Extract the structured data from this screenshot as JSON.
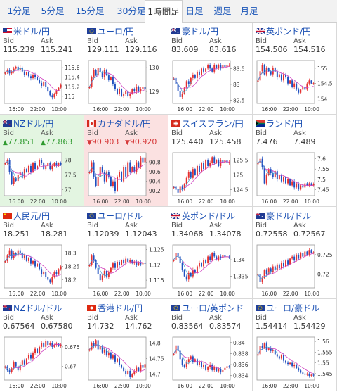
{
  "tabs": [
    {
      "label": "1分足",
      "active": false
    },
    {
      "label": "5分足",
      "active": false
    },
    {
      "label": "15分足",
      "active": false
    },
    {
      "label": "30分足",
      "active": false
    },
    {
      "label": "1時間足",
      "active": true
    },
    {
      "label": "日足",
      "active": false
    },
    {
      "label": "週足",
      "active": false
    },
    {
      "label": "月足",
      "active": false
    }
  ],
  "labels": {
    "bid": "Bid",
    "ask": "Ask"
  },
  "colors": {
    "up_candle": "#e53030",
    "down_candle": "#2050c0",
    "ma_line": "#d040c0",
    "ma_line2": "#40a0d0",
    "title": "#1a4fb3"
  },
  "pairs": [
    {
      "name": "米ドル/円",
      "flag": "us-flag-icon",
      "bid": "115.239",
      "ask": "115.241",
      "trend": "none",
      "ticks": [
        "115.6",
        "115.4",
        "115.2",
        "115"
      ],
      "x_ticks": [
        "16:00",
        "22:00",
        "10:00"
      ],
      "chart_data": {
        "type": "candlestick",
        "ylim": [
          114.85,
          115.75
        ],
        "close": [
          115.5,
          115.55,
          115.48,
          115.52,
          115.58,
          115.62,
          115.55,
          115.6,
          115.52,
          115.45,
          115.5,
          115.42,
          115.38,
          115.45,
          115.4,
          115.35,
          115.28,
          115.22,
          115.3,
          115.2,
          115.1,
          115.02,
          114.98,
          115.05,
          115.12,
          115.18,
          115.24
        ]
      }
    },
    {
      "name": "ユーロ/円",
      "flag": "eu-flag-icon",
      "bid": "129.111",
      "ask": "129.116",
      "trend": "none",
      "ticks": [
        "130",
        "129"
      ],
      "x_ticks": [
        "16:00",
        "22:00",
        "10:00"
      ],
      "chart_data": {
        "type": "candlestick",
        "ylim": [
          128.5,
          130.3
        ],
        "close": [
          129.2,
          129.6,
          129.9,
          129.7,
          130.0,
          129.8,
          129.6,
          129.9,
          129.7,
          129.5,
          129.6,
          129.3,
          129.1,
          128.9,
          129.1,
          128.8,
          128.9,
          129.0,
          128.8,
          128.9,
          129.1,
          129.0,
          129.2,
          129.0,
          129.1,
          129.2,
          129.11
        ]
      }
    },
    {
      "name": "豪ドル/円",
      "flag": "au-flag-icon",
      "bid": "83.609",
      "ask": "83.616",
      "trend": "none",
      "ticks": [
        "83.5",
        "83",
        "82.5"
      ],
      "x_ticks": [
        "16:00",
        "22:00",
        "10:00"
      ],
      "chart_data": {
        "type": "candlestick",
        "ylim": [
          82.4,
          83.75
        ],
        "close": [
          83.2,
          83.0,
          82.8,
          82.6,
          82.7,
          82.9,
          83.1,
          83.0,
          83.2,
          83.3,
          83.2,
          83.4,
          83.3,
          83.5,
          83.4,
          83.5,
          83.6,
          83.5,
          83.4,
          83.6,
          83.5,
          83.6,
          83.5,
          83.6,
          83.55,
          83.6,
          83.61
        ]
      }
    },
    {
      "name": "英ポンド/円",
      "flag": "gb-flag-icon",
      "bid": "154.506",
      "ask": "154.516",
      "trend": "none",
      "ticks": [
        "155",
        "154.5",
        "154"
      ],
      "x_ticks": [
        "16:00",
        "22:00",
        "10:00"
      ],
      "chart_data": {
        "type": "candlestick",
        "ylim": [
          153.85,
          155.25
        ],
        "close": [
          154.6,
          154.9,
          155.1,
          154.8,
          155.0,
          154.9,
          154.8,
          155.0,
          154.9,
          154.7,
          154.8,
          154.6,
          154.8,
          154.7,
          154.5,
          154.6,
          154.4,
          154.5,
          154.3,
          154.2,
          154.3,
          154.4,
          154.3,
          154.5,
          154.6,
          154.5,
          154.51
        ]
      }
    },
    {
      "name": "NZドル/円",
      "flag": "nz-flag-icon",
      "bid": "77.851",
      "ask": "77.863",
      "trend": "up",
      "arrow": "▲",
      "ticks": [
        "78",
        "77.5",
        "77"
      ],
      "x_ticks": [
        "16:00",
        "22:00",
        "10:00"
      ],
      "chart_data": {
        "type": "candlestick",
        "ylim": [
          76.8,
          78.25
        ],
        "close": [
          77.9,
          78.0,
          77.6,
          77.2,
          77.4,
          77.3,
          77.5,
          77.6,
          77.4,
          77.7,
          77.6,
          77.8,
          77.6,
          77.9,
          77.7,
          77.8,
          78.0,
          77.9,
          77.7,
          77.8,
          77.9,
          77.7,
          77.8,
          77.9,
          77.8,
          77.9,
          77.85
        ]
      }
    },
    {
      "name": "カナダドル/円",
      "flag": "ca-flag-icon",
      "bid": "90.903",
      "ask": "90.920",
      "trend": "down",
      "arrow": "▼",
      "ticks": [
        "90.8",
        "90.6",
        "90.4",
        "90.2"
      ],
      "x_ticks": [
        "16:00",
        "22:00",
        "10:00"
      ],
      "chart_data": {
        "type": "candlestick",
        "ylim": [
          90.1,
          91.0
        ],
        "close": [
          90.6,
          90.8,
          90.5,
          90.3,
          90.5,
          90.7,
          90.6,
          90.4,
          90.6,
          90.5,
          90.3,
          90.4,
          90.2,
          90.5,
          90.6,
          90.4,
          90.7,
          90.5,
          90.8,
          90.6,
          90.7,
          90.6,
          90.8,
          90.7,
          90.9,
          90.8,
          90.9
        ]
      }
    },
    {
      "name": "スイスフラン/円",
      "flag": "ch-flag-icon",
      "bid": "125.440",
      "ask": "125.458",
      "trend": "none",
      "ticks": [
        "125.5",
        "125",
        "124.5"
      ],
      "x_ticks": [
        "16:00",
        "22:00",
        "10:00"
      ],
      "chart_data": {
        "type": "candlestick",
        "ylim": [
          124.3,
          125.75
        ],
        "close": [
          124.6,
          124.5,
          124.4,
          124.6,
          124.5,
          124.7,
          124.9,
          125.1,
          124.9,
          125.2,
          125.0,
          125.3,
          125.1,
          125.4,
          125.2,
          125.5,
          125.3,
          125.4,
          125.6,
          125.4,
          125.5,
          125.3,
          125.5,
          125.4,
          125.5,
          125.4,
          125.44
        ]
      }
    },
    {
      "name": "ランド/円",
      "flag": "za-flag-icon",
      "bid": "7.476",
      "ask": "7.489",
      "trend": "none",
      "ticks": [
        "7.6",
        "7.55",
        "7.5",
        "7.45"
      ],
      "x_ticks": [
        "16:00",
        "22:00",
        "10:00"
      ],
      "chart_data": {
        "type": "candlestick",
        "ylim": [
          7.42,
          7.63
        ],
        "close": [
          7.58,
          7.6,
          7.56,
          7.48,
          7.52,
          7.55,
          7.53,
          7.51,
          7.54,
          7.5,
          7.52,
          7.49,
          7.51,
          7.48,
          7.5,
          7.47,
          7.49,
          7.46,
          7.48,
          7.45,
          7.47,
          7.46,
          7.48,
          7.47,
          7.48,
          7.47,
          7.476
        ]
      }
    },
    {
      "name": "人民元/円",
      "flag": "cn-flag-icon",
      "bid": "18.251",
      "ask": "18.281",
      "trend": "none",
      "ticks": [
        "18.3",
        "18.25",
        "18.2"
      ],
      "x_ticks": [
        "16:00",
        "22:00",
        "10:00"
      ],
      "chart_data": {
        "type": "candlestick",
        "ylim": [
          18.17,
          18.33
        ],
        "close": [
          18.27,
          18.29,
          18.31,
          18.28,
          18.3,
          18.29,
          18.31,
          18.3,
          18.28,
          18.29,
          18.27,
          18.28,
          18.26,
          18.27,
          18.25,
          18.26,
          18.24,
          18.22,
          18.23,
          18.21,
          18.2,
          18.19,
          18.21,
          18.23,
          18.22,
          18.24,
          18.25
        ]
      }
    },
    {
      "name": "ユーロ/ドル",
      "flag": "eu-flag-icon",
      "bid": "1.12039",
      "ask": "1.12043",
      "trend": "none",
      "ticks": [
        "1.125",
        "1.12",
        "1.115"
      ],
      "x_ticks": [
        "16:00",
        "22:00",
        "10:00"
      ],
      "chart_data": {
        "type": "candlestick",
        "ylim": [
          1.1125,
          1.1265
        ],
        "close": [
          1.12,
          1.123,
          1.1215,
          1.119,
          1.117,
          1.115,
          1.1165,
          1.118,
          1.116,
          1.1175,
          1.119,
          1.1205,
          1.119,
          1.121,
          1.12,
          1.1215,
          1.1205,
          1.122,
          1.121,
          1.1215,
          1.1205,
          1.121,
          1.12,
          1.1208,
          1.1202,
          1.1206,
          1.1204
        ]
      }
    },
    {
      "name": "英ポンド/ドル",
      "flag": "gb-flag-icon",
      "bid": "1.34068",
      "ask": "1.34078",
      "trend": "none",
      "ticks": [
        "1.34",
        "1.335"
      ],
      "x_ticks": [
        "16:00",
        "22:00",
        "10:00"
      ],
      "chart_data": {
        "type": "candlestick",
        "ylim": [
          1.3315,
          1.3445
        ],
        "close": [
          1.34,
          1.342,
          1.341,
          1.339,
          1.337,
          1.335,
          1.334,
          1.336,
          1.335,
          1.337,
          1.336,
          1.338,
          1.339,
          1.338,
          1.34,
          1.339,
          1.341,
          1.34,
          1.342,
          1.341,
          1.34,
          1.341,
          1.3405,
          1.3415,
          1.3408,
          1.341,
          1.3407
        ]
      }
    },
    {
      "name": "豪ドル/ドル",
      "flag": "au-flag-icon",
      "bid": "0.72558",
      "ask": "0.72567",
      "trend": "none",
      "ticks": [
        "0.725",
        "0.72"
      ],
      "x_ticks": [
        "16:00",
        "22:00",
        "10:00"
      ],
      "chart_data": {
        "type": "candlestick",
        "ylim": [
          0.7165,
          0.7275
        ],
        "close": [
          0.72,
          0.718,
          0.719,
          0.721,
          0.72,
          0.7215,
          0.7205,
          0.722,
          0.721,
          0.7225,
          0.7215,
          0.723,
          0.722,
          0.7235,
          0.7225,
          0.724,
          0.7245,
          0.7235,
          0.725,
          0.724,
          0.7255,
          0.7245,
          0.7258,
          0.725,
          0.7262,
          0.7255,
          0.7256
        ]
      }
    },
    {
      "name": "NZドル/ドル",
      "flag": "nz-flag-icon",
      "bid": "0.67564",
      "ask": "0.67580",
      "trend": "none",
      "ticks": [
        "0.675",
        "0.67"
      ],
      "x_ticks": [
        "16:00",
        "22:00",
        "10:00"
      ],
      "chart_data": {
        "type": "candlestick",
        "ylim": [
          0.6665,
          0.6775
        ],
        "close": [
          0.67,
          0.669,
          0.6685,
          0.6695,
          0.671,
          0.67,
          0.669,
          0.6705,
          0.6715,
          0.6705,
          0.672,
          0.673,
          0.672,
          0.6735,
          0.6745,
          0.6735,
          0.675,
          0.676,
          0.675,
          0.6765,
          0.6755,
          0.676,
          0.675,
          0.6755,
          0.6758,
          0.6752,
          0.6756
        ]
      }
    },
    {
      "name": "香港ドル/円",
      "flag": "hk-flag-icon",
      "bid": "14.732",
      "ask": "14.762",
      "trend": "none",
      "ticks": [
        "14.8",
        "14.75",
        "14.7"
      ],
      "x_ticks": [
        "16:00",
        "22:00",
        "10:00"
      ],
      "chart_data": {
        "type": "candlestick",
        "ylim": [
          14.68,
          14.82
        ],
        "close": [
          14.78,
          14.8,
          14.79,
          14.81,
          14.78,
          14.79,
          14.77,
          14.78,
          14.76,
          14.77,
          14.75,
          14.76,
          14.74,
          14.75,
          14.73,
          14.72,
          14.71,
          14.7,
          14.71,
          14.69,
          14.7,
          14.71,
          14.72,
          14.71,
          14.73,
          14.72,
          14.732
        ]
      }
    },
    {
      "name": "ユーロ/英ポンド",
      "flag": "eu-flag-icon",
      "bid": "0.83564",
      "ask": "0.83574",
      "trend": "none",
      "ticks": [
        "0.84",
        "0.838",
        "0.836",
        "0.834"
      ],
      "x_ticks": [
        "16:00",
        "22:00",
        "10:00"
      ],
      "chart_data": {
        "type": "candlestick",
        "ylim": [
          0.8332,
          0.841
        ],
        "close": [
          0.838,
          0.8395,
          0.8385,
          0.837,
          0.836,
          0.8355,
          0.8365,
          0.837,
          0.8375,
          0.8365,
          0.837,
          0.836,
          0.8365,
          0.8355,
          0.836,
          0.835,
          0.8355,
          0.836,
          0.835,
          0.8355,
          0.8348,
          0.8352,
          0.8346,
          0.835,
          0.8354,
          0.8357,
          0.8356
        ]
      }
    },
    {
      "name": "ユーロ/豪ドル",
      "flag": "eu-flag-icon",
      "bid": "1.54414",
      "ask": "1.54429",
      "trend": "none",
      "ticks": [
        "1.56",
        "1.555",
        "1.55",
        "1.545"
      ],
      "x_ticks": [
        "16:00",
        "22:00",
        "10:00"
      ],
      "chart_data": {
        "type": "candlestick",
        "ylim": [
          1.542,
          1.562
        ],
        "close": [
          1.554,
          1.558,
          1.557,
          1.559,
          1.556,
          1.557,
          1.5555,
          1.556,
          1.554,
          1.553,
          1.552,
          1.5535,
          1.551,
          1.55,
          1.5495,
          1.55,
          1.5485,
          1.549,
          1.5475,
          1.5465,
          1.5455,
          1.545,
          1.5445,
          1.545,
          1.544,
          1.5445,
          1.5441
        ]
      }
    }
  ]
}
